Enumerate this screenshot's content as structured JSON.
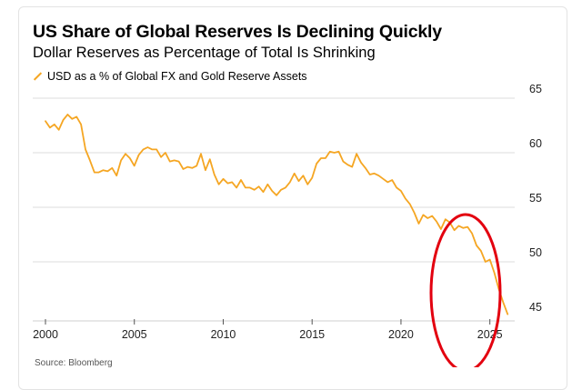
{
  "chart_data": {
    "type": "line",
    "title": "US Share of Global Reserves Is Declining Quickly",
    "subtitle": "Dollar Reserves as Percentage of Total Is Shrinking",
    "xlabel": "",
    "ylabel": "",
    "xlim": [
      2000,
      2026.5
    ],
    "ylim": [
      45,
      65
    ],
    "x_ticks": [
      2000,
      2005,
      2010,
      2015,
      2020,
      2025
    ],
    "x_tick_labels": [
      "2000",
      "2005",
      "2010",
      "2015",
      "2020",
      "2025"
    ],
    "y_ticks": [
      45,
      50,
      55,
      60,
      65
    ],
    "y_tick_labels": [
      "45",
      "50",
      "55",
      "60",
      "65"
    ],
    "grid": true,
    "legend_position": "top-left",
    "series": [
      {
        "name": "USD as a % of Global FX and Gold Reserve Assets",
        "color": "#f5a623",
        "points": [
          [
            2000.0,
            62.9
          ],
          [
            2000.25,
            62.3
          ],
          [
            2000.5,
            62.6
          ],
          [
            2000.75,
            62.1
          ],
          [
            2001.0,
            63.0
          ],
          [
            2001.25,
            63.5
          ],
          [
            2001.5,
            63.1
          ],
          [
            2001.75,
            63.3
          ],
          [
            2002.0,
            62.6
          ],
          [
            2002.25,
            60.3
          ],
          [
            2002.5,
            59.3
          ],
          [
            2002.75,
            58.2
          ],
          [
            2003.0,
            58.2
          ],
          [
            2003.25,
            58.4
          ],
          [
            2003.5,
            58.3
          ],
          [
            2003.75,
            58.6
          ],
          [
            2004.0,
            57.9
          ],
          [
            2004.25,
            59.3
          ],
          [
            2004.5,
            59.9
          ],
          [
            2004.75,
            59.5
          ],
          [
            2005.0,
            58.8
          ],
          [
            2005.25,
            59.8
          ],
          [
            2005.5,
            60.3
          ],
          [
            2005.75,
            60.5
          ],
          [
            2006.0,
            60.3
          ],
          [
            2006.25,
            60.3
          ],
          [
            2006.5,
            59.6
          ],
          [
            2006.75,
            60.0
          ],
          [
            2007.0,
            59.2
          ],
          [
            2007.25,
            59.3
          ],
          [
            2007.5,
            59.2
          ],
          [
            2007.75,
            58.5
          ],
          [
            2008.0,
            58.7
          ],
          [
            2008.25,
            58.6
          ],
          [
            2008.5,
            58.8
          ],
          [
            2008.75,
            59.9
          ],
          [
            2009.0,
            58.4
          ],
          [
            2009.25,
            59.4
          ],
          [
            2009.5,
            58.0
          ],
          [
            2009.75,
            57.1
          ],
          [
            2010.0,
            57.6
          ],
          [
            2010.25,
            57.2
          ],
          [
            2010.5,
            57.3
          ],
          [
            2010.75,
            56.8
          ],
          [
            2011.0,
            57.5
          ],
          [
            2011.25,
            56.8
          ],
          [
            2011.5,
            56.8
          ],
          [
            2011.75,
            56.6
          ],
          [
            2012.0,
            56.9
          ],
          [
            2012.25,
            56.4
          ],
          [
            2012.5,
            57.1
          ],
          [
            2012.75,
            56.5
          ],
          [
            2013.0,
            56.1
          ],
          [
            2013.25,
            56.6
          ],
          [
            2013.5,
            56.8
          ],
          [
            2013.75,
            57.3
          ],
          [
            2014.0,
            58.1
          ],
          [
            2014.25,
            57.4
          ],
          [
            2014.5,
            57.9
          ],
          [
            2014.75,
            57.1
          ],
          [
            2015.0,
            57.7
          ],
          [
            2015.25,
            59.0
          ],
          [
            2015.5,
            59.5
          ],
          [
            2015.75,
            59.5
          ],
          [
            2016.0,
            60.1
          ],
          [
            2016.25,
            60.0
          ],
          [
            2016.5,
            60.1
          ],
          [
            2016.75,
            59.2
          ],
          [
            2017.0,
            58.9
          ],
          [
            2017.25,
            58.7
          ],
          [
            2017.5,
            59.9
          ],
          [
            2017.75,
            59.1
          ],
          [
            2018.0,
            58.6
          ],
          [
            2018.25,
            58.0
          ],
          [
            2018.5,
            58.1
          ],
          [
            2018.75,
            57.9
          ],
          [
            2019.0,
            57.6
          ],
          [
            2019.25,
            57.3
          ],
          [
            2019.5,
            57.5
          ],
          [
            2019.75,
            56.8
          ],
          [
            2020.0,
            56.5
          ],
          [
            2020.25,
            55.8
          ],
          [
            2020.5,
            55.3
          ],
          [
            2020.75,
            54.5
          ],
          [
            2021.0,
            53.5
          ],
          [
            2021.25,
            54.3
          ],
          [
            2021.5,
            54.0
          ],
          [
            2021.75,
            54.2
          ],
          [
            2022.0,
            53.7
          ],
          [
            2022.25,
            53.0
          ],
          [
            2022.5,
            53.9
          ],
          [
            2022.75,
            53.6
          ],
          [
            2023.0,
            52.9
          ],
          [
            2023.25,
            53.3
          ],
          [
            2023.5,
            53.1
          ],
          [
            2023.75,
            53.2
          ],
          [
            2024.0,
            52.6
          ],
          [
            2024.25,
            51.5
          ],
          [
            2024.5,
            51.0
          ],
          [
            2024.75,
            50.0
          ],
          [
            2025.0,
            50.2
          ],
          [
            2025.25,
            49.0
          ],
          [
            2025.5,
            47.5
          ],
          [
            2025.75,
            46.3
          ],
          [
            2026.0,
            45.2
          ]
        ]
      }
    ],
    "annotations": [
      {
        "type": "ellipse",
        "color": "#e3000f",
        "description": "red circle"
      }
    ]
  },
  "source_label": "Source: Bloomberg"
}
